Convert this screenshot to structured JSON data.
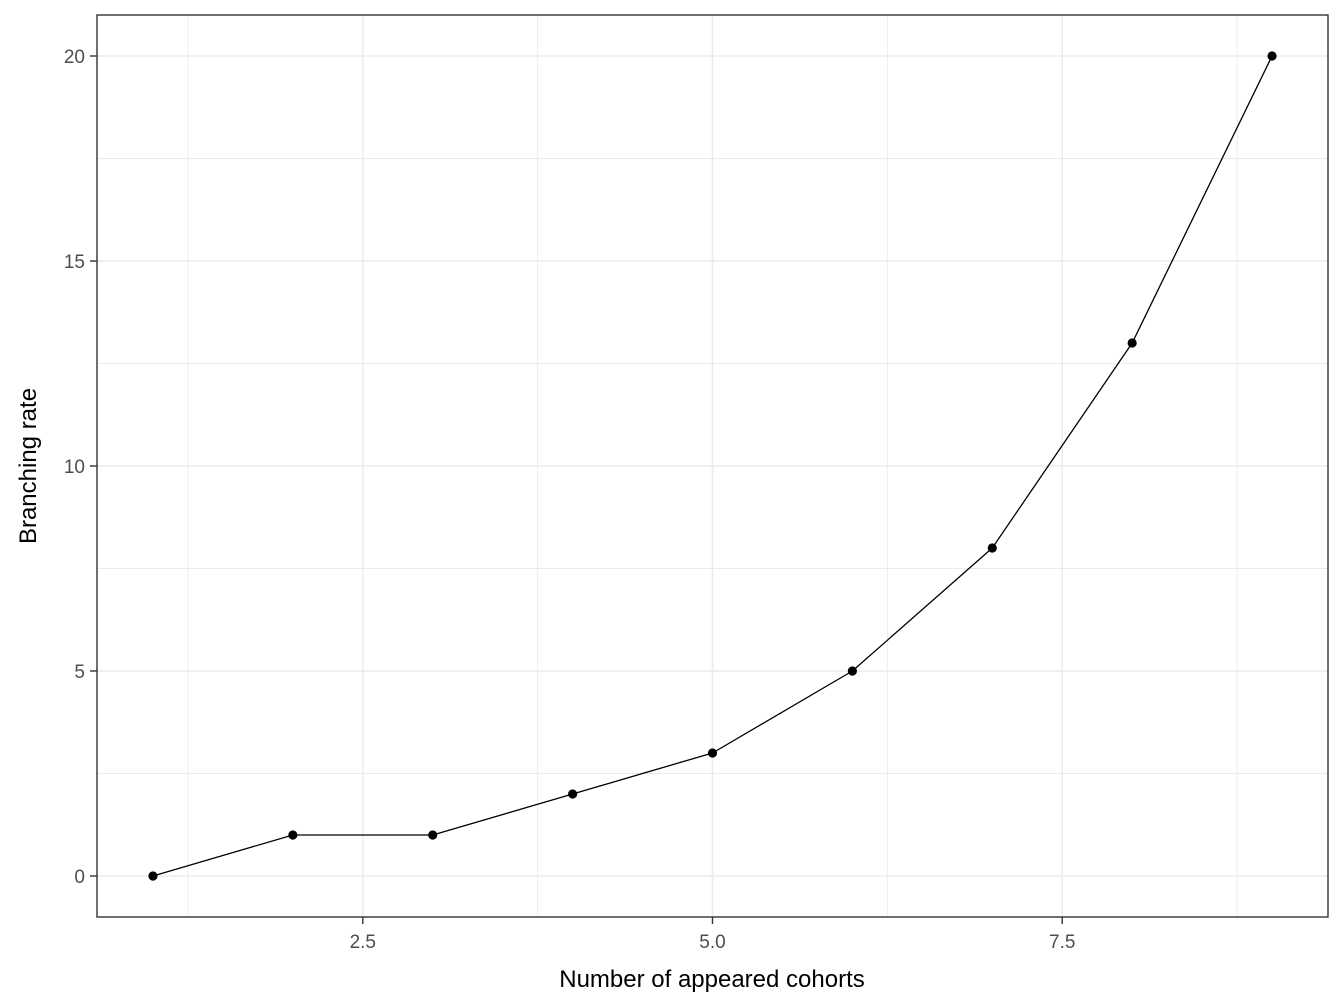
{
  "chart_data": {
    "type": "line",
    "title": "",
    "xlabel": "Number of appeared cohorts",
    "ylabel": "Branching rate",
    "x": [
      1,
      2,
      3,
      4,
      5,
      6,
      7,
      8,
      9
    ],
    "series": [
      {
        "values": [
          0,
          1,
          1,
          2,
          3,
          5,
          8,
          13,
          20
        ]
      }
    ],
    "xlim": [
      0.6,
      9.4
    ],
    "ylim": [
      -1,
      21
    ],
    "x_ticks": [
      2.5,
      5.0,
      7.5
    ],
    "x_tick_labels": [
      "2.5",
      "5.0",
      "7.5"
    ],
    "y_ticks": [
      0,
      5,
      10,
      15,
      20
    ],
    "y_tick_labels": [
      "0",
      "5",
      "10",
      "15",
      "20"
    ],
    "x_minor_ticks": [
      1.25,
      3.75,
      6.25,
      8.75
    ],
    "y_minor_ticks": [
      2.5,
      7.5,
      12.5,
      17.5
    ],
    "grid": true,
    "legend": "none",
    "colors": {
      "line": "#000000",
      "points": "#000000",
      "grid": "#ebebeb",
      "panel_border": "#333333",
      "tick_text": "#4d4d4d"
    }
  }
}
